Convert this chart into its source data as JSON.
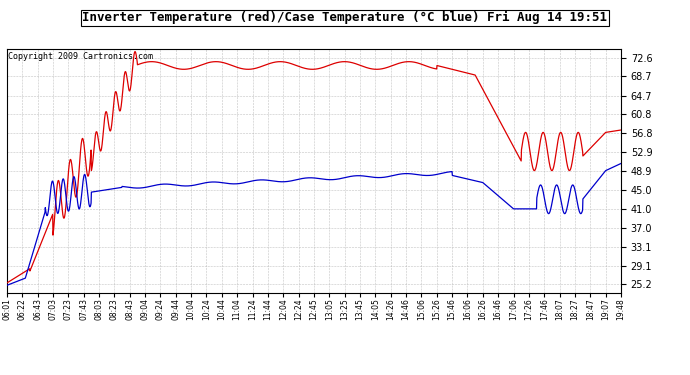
{
  "title": "Inverter Temperature (red)/Case Temperature (°C blue) Fri Aug 14 19:51",
  "copyright": "Copyright 2009 Cartronics.com",
  "yticks": [
    25.2,
    29.1,
    33.1,
    37.0,
    41.0,
    45.0,
    48.9,
    52.9,
    56.8,
    60.8,
    64.7,
    68.7,
    72.6
  ],
  "ylim": [
    23.5,
    74.5
  ],
  "xtick_labels": [
    "06:01",
    "06:22",
    "06:43",
    "07:03",
    "07:23",
    "07:43",
    "08:03",
    "08:23",
    "08:43",
    "09:04",
    "09:24",
    "09:44",
    "10:04",
    "10:24",
    "10:44",
    "11:04",
    "11:24",
    "11:44",
    "12:04",
    "12:24",
    "12:45",
    "13:05",
    "13:25",
    "13:45",
    "14:05",
    "14:26",
    "14:46",
    "15:06",
    "15:26",
    "15:46",
    "16:06",
    "16:26",
    "16:46",
    "17:06",
    "17:26",
    "17:46",
    "18:07",
    "18:27",
    "18:47",
    "19:07",
    "19:48"
  ],
  "bg_color": "#ffffff",
  "grid_color": "#aaaaaa",
  "red_color": "#dd0000",
  "blue_color": "#0000cc",
  "title_fontsize": 9,
  "copyright_fontsize": 6,
  "ytick_fontsize": 7,
  "xtick_fontsize": 5.5
}
